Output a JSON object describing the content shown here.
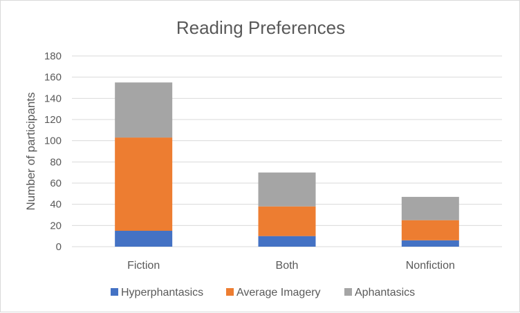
{
  "chart_data": {
    "type": "bar",
    "stacked": true,
    "title": "Reading Preferences",
    "xlabel": "",
    "ylabel": "Number of participants",
    "categories": [
      "Fiction",
      "Both",
      "Nonfiction"
    ],
    "series": [
      {
        "name": "Hyperphantasics",
        "color": "#4472c4",
        "values": [
          15,
          10,
          6
        ]
      },
      {
        "name": "Average Imagery",
        "color": "#ed7d31",
        "values": [
          88,
          28,
          19
        ]
      },
      {
        "name": "Aphantasics",
        "color": "#a5a5a5",
        "values": [
          52,
          32,
          22
        ]
      }
    ],
    "ylim": [
      0,
      180
    ],
    "yticks": [
      0,
      20,
      40,
      60,
      80,
      100,
      120,
      140,
      160,
      180
    ],
    "grid": true,
    "legend_position": "bottom"
  }
}
